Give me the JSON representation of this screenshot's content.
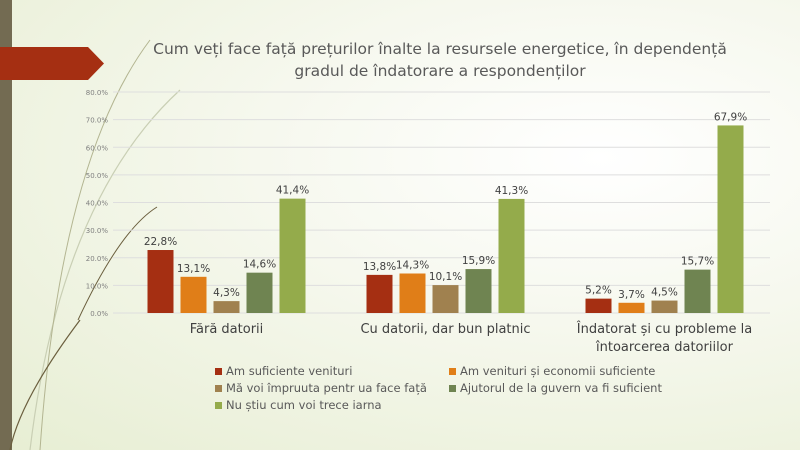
{
  "chart_data": {
    "type": "bar",
    "title": "Cum veți face față prețurilor înalte la resursele energetice, în dependență gradul de îndatorare a respondenților",
    "title_lines": [
      "Cum veți face față prețurilor înalte la resursele energetice, în dependență",
      "gradul de îndatorare a respondenților"
    ],
    "categories": [
      "Fără datorii",
      "Cu datorii, dar bun platnic",
      "Îndatorat și cu probleme la întoarcerea datoriilor"
    ],
    "category_lines": [
      [
        "Fără datorii"
      ],
      [
        "Cu datorii, dar bun platnic"
      ],
      [
        "Îndatorat și cu probleme la",
        "întoarcerea datoriilor"
      ]
    ],
    "ylim": [
      0,
      80
    ],
    "yticks": [
      "0.0%",
      "10.0%",
      "20.0%",
      "30.0%",
      "40.0%",
      "50.0%",
      "60.0%",
      "70.0%",
      "80.0%"
    ],
    "grid": true,
    "legend_position": "bottom",
    "series": [
      {
        "name": "Am suficiente venituri",
        "color": "#a52f12",
        "values": [
          22.8,
          13.8,
          5.2
        ],
        "labels": [
          "22,8%",
          "13,8%",
          "5,2%"
        ]
      },
      {
        "name": "Am venituri și economii suficiente",
        "color": "#e07e18",
        "values": [
          13.1,
          14.3,
          3.7
        ],
        "labels": [
          "13,1%",
          "14,3%",
          "3,7%"
        ]
      },
      {
        "name": "Mă voi împruuta pentr ua face față",
        "color": "#a0814f",
        "values": [
          4.3,
          10.1,
          4.5
        ],
        "labels": [
          "4,3%",
          "10,1%",
          "4,5%"
        ]
      },
      {
        "name": "Ajutorul de la guvern va fi suficient",
        "color": "#6f8451",
        "values": [
          14.6,
          15.9,
          15.7
        ],
        "labels": [
          "14,6%",
          "15,9%",
          "15,7%"
        ]
      },
      {
        "name": "Nu știu cum voi trece iarna",
        "color": "#94ab4b",
        "values": [
          41.4,
          41.3,
          67.9
        ],
        "labels": [
          "41,4%",
          "41,3%",
          "67,9%"
        ]
      }
    ]
  }
}
